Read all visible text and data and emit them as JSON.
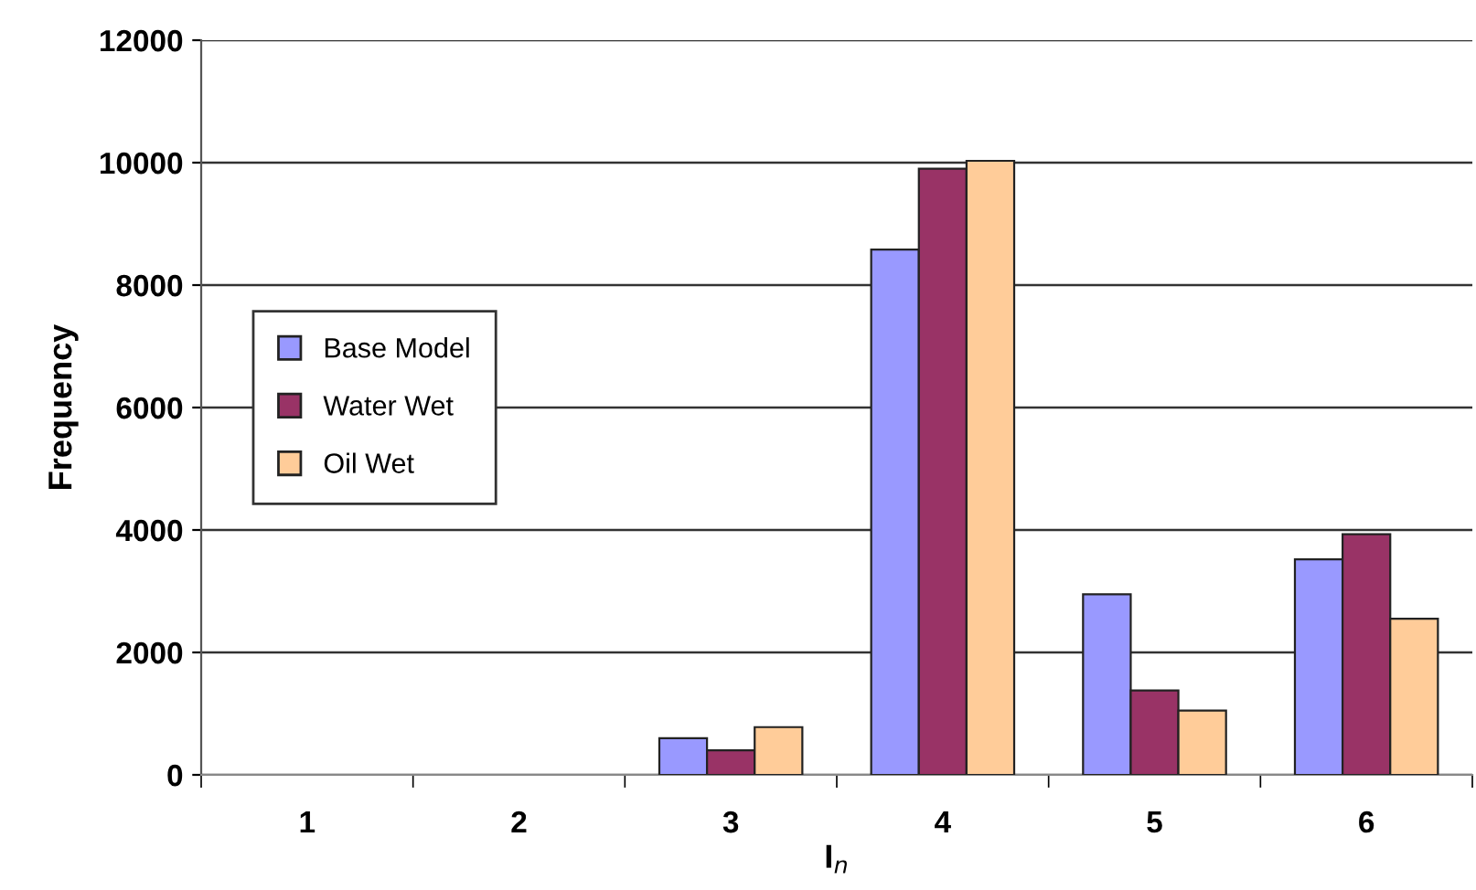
{
  "chart_data": {
    "type": "bar",
    "xlabel": "I$_{n}$",
    "ylabel": "Frequency",
    "categories": [
      "1",
      "2",
      "3",
      "4",
      "5",
      "6"
    ],
    "series": [
      {
        "name": "Base Model",
        "color": "#9999ff",
        "values": [
          null,
          null,
          600,
          8580,
          2950,
          3520
        ]
      },
      {
        "name": "Water Wet",
        "color": "#993366",
        "values": [
          null,
          null,
          400,
          9900,
          1380,
          3930
        ]
      },
      {
        "name": "Oil Wet",
        "color": "#ffcc99",
        "values": [
          null,
          null,
          780,
          10030,
          1050,
          2550
        ]
      }
    ],
    "ylim": [
      0,
      12000
    ],
    "yticks": [
      0,
      2000,
      4000,
      6000,
      8000,
      10000,
      12000
    ],
    "grid": "y",
    "legend": "left"
  }
}
